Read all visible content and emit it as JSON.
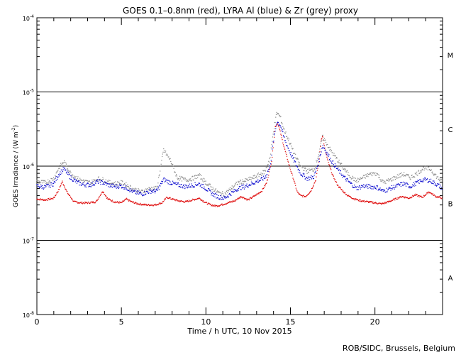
{
  "chart_data": {
    "type": "scatter",
    "title": "GOES 0.1–0.8nm (red), LYRA Al (blue) & Zr (grey) proxy",
    "xlabel": "Time / h UTC, 10 Nov 2015",
    "ylabel_main": "GOES Irradiance / (W m",
    "ylabel_sup": "-2",
    "ylabel_end": ")",
    "credit": "ROB/SIDC, Brussels, Belgium",
    "x_range": [
      0,
      24
    ],
    "x_ticks": [
      {
        "value": 0,
        "label": "0"
      },
      {
        "value": 5,
        "label": "5"
      },
      {
        "value": 10,
        "label": "10"
      },
      {
        "value": 15,
        "label": "15"
      },
      {
        "value": 20,
        "label": "20"
      }
    ],
    "y_scale": "log",
    "y_range": [
      1e-08,
      0.0001
    ],
    "y_ticks": [
      {
        "value": 1e-08,
        "base": "10",
        "exp": "-8"
      },
      {
        "value": 1e-07,
        "base": "10",
        "exp": "-7"
      },
      {
        "value": 1e-06,
        "base": "10",
        "exp": "-6"
      },
      {
        "value": 1e-05,
        "base": "10",
        "exp": "-5"
      },
      {
        "value": 0.0001,
        "base": "10",
        "exp": "-4"
      }
    ],
    "class_lines": [
      1e-07,
      1e-06,
      1e-05
    ],
    "flare_classes": [
      {
        "label": "A",
        "value": 3.16e-08
      },
      {
        "label": "B",
        "value": 3.16e-07
      },
      {
        "label": "C",
        "value": 3.16e-06
      },
      {
        "label": "M",
        "value": 3.16e-05
      }
    ],
    "colors": {
      "goes": "#dd0000",
      "al": "#0000cc",
      "zr": "#888888"
    },
    "series": [
      {
        "key": "goes",
        "x": [
          0,
          0.5,
          1,
          1.3,
          1.5,
          1.8,
          2.2,
          2.6,
          3,
          3.5,
          3.9,
          4.2,
          4.6,
          5,
          5.3,
          5.6,
          6,
          6.5,
          7,
          7.4,
          7.7,
          8,
          8.4,
          8.8,
          9.2,
          9.6,
          10,
          10.3,
          10.6,
          10.9,
          11.3,
          11.7,
          12.1,
          12.5,
          12.9,
          13.3,
          13.6,
          13.9,
          14.1,
          14.25,
          14.4,
          14.6,
          14.8,
          15.0,
          15.2,
          15.4,
          15.6,
          15.9,
          16.2,
          16.5,
          16.7,
          16.8,
          16.9,
          17.0,
          17.2,
          17.5,
          17.8,
          18.1,
          18.4,
          18.8,
          19.2,
          19.6,
          20,
          20.4,
          20.8,
          21.2,
          21.6,
          22,
          22.4,
          22.8,
          23.2,
          23.6,
          24
        ],
        "y": [
          3.6e-07,
          3.5e-07,
          3.7e-07,
          4.8e-07,
          6.2e-07,
          4.4e-07,
          3.3e-07,
          3.2e-07,
          3.2e-07,
          3.3e-07,
          4.6e-07,
          3.6e-07,
          3.3e-07,
          3.2e-07,
          3.6e-07,
          3.3e-07,
          3.1e-07,
          3e-07,
          3e-07,
          3.2e-07,
          3.8e-07,
          3.6e-07,
          3.4e-07,
          3.3e-07,
          3.5e-07,
          3.7e-07,
          3.2e-07,
          3e-07,
          2.9e-07,
          3e-07,
          3.2e-07,
          3.4e-07,
          3.9e-07,
          3.5e-07,
          4e-07,
          4.6e-07,
          6e-07,
          1.2e-06,
          3.4e-06,
          3.8e-06,
          2.9e-06,
          1.9e-06,
          1.3e-06,
          9e-07,
          6.5e-07,
          4.5e-07,
          4e-07,
          3.9e-07,
          4.6e-07,
          6.5e-07,
          1.2e-06,
          2.2e-06,
          2.6e-06,
          1.9e-06,
          1.2e-06,
          7.5e-07,
          5.5e-07,
          4.6e-07,
          4e-07,
          3.6e-07,
          3.4e-07,
          3.3e-07,
          3.2e-07,
          3.1e-07,
          3.3e-07,
          3.6e-07,
          3.9e-07,
          3.7e-07,
          4.1e-07,
          3.8e-07,
          4.5e-07,
          3.9e-07,
          3.7e-07
        ]
      },
      {
        "key": "al",
        "x": [
          0,
          0.5,
          1,
          1.3,
          1.6,
          2.0,
          2.4,
          2.8,
          3.2,
          3.6,
          3.9,
          4.3,
          4.7,
          5.0,
          5.3,
          5.7,
          6.2,
          6.7,
          7.1,
          7.5,
          7.9,
          8.3,
          8.8,
          9.2,
          9.6,
          10.0,
          10.4,
          10.8,
          11.1,
          11.5,
          11.9,
          12.3,
          12.7,
          13.1,
          13.5,
          13.8,
          14.0,
          14.2,
          14.4,
          14.6,
          14.8,
          15.0,
          15.2,
          15.6,
          16.0,
          16.4,
          16.7,
          16.9,
          17.1,
          17.4,
          17.8,
          18.2,
          18.5,
          18.9,
          19.3,
          19.7,
          20.1,
          20.5,
          20.9,
          21.3,
          21.7,
          22.1,
          22.5,
          22.9,
          23.3,
          23.7,
          24
        ],
        "y": [
          5.4e-07,
          5.2e-07,
          5.8e-07,
          7.8e-07,
          9.2e-07,
          7e-07,
          6e-07,
          5.6e-07,
          5.6e-07,
          6.2e-07,
          6e-07,
          5.5e-07,
          5.3e-07,
          5.4e-07,
          5.1e-07,
          4.5e-07,
          4.2e-07,
          4.6e-07,
          4.6e-07,
          6.6e-07,
          6e-07,
          5.6e-07,
          5.3e-07,
          5.5e-07,
          5.8e-07,
          5e-07,
          4.2e-07,
          3.8e-07,
          3.7e-07,
          4.3e-07,
          5e-07,
          5.3e-07,
          5.8e-07,
          6.3e-07,
          7e-07,
          1e-06,
          2.2e-06,
          4e-06,
          3.6e-06,
          2.5e-06,
          1.9e-06,
          1.5e-06,
          1.2e-06,
          8e-07,
          6.8e-07,
          7.2e-07,
          1.2e-06,
          1.9e-06,
          1.6e-06,
          1.2e-06,
          9e-07,
          7e-07,
          6e-07,
          5e-07,
          5.4e-07,
          5.3e-07,
          5.2e-07,
          4.6e-07,
          5e-07,
          5.4e-07,
          5.8e-07,
          5.3e-07,
          6e-07,
          6.6e-07,
          6.3e-07,
          5.6e-07,
          5e-07
        ]
      },
      {
        "key": "zr",
        "x": [
          0,
          0.5,
          1,
          1.3,
          1.6,
          2.0,
          2.4,
          2.8,
          3.2,
          3.6,
          3.9,
          4.3,
          4.7,
          5.0,
          5.3,
          5.7,
          6.2,
          6.7,
          7.1,
          7.5,
          7.9,
          8.3,
          8.8,
          9.2,
          9.6,
          10.0,
          10.4,
          10.8,
          11.1,
          11.5,
          11.9,
          12.3,
          12.7,
          13.1,
          13.5,
          13.8,
          14.0,
          14.2,
          14.4,
          14.6,
          14.8,
          15.0,
          15.2,
          15.6,
          16.0,
          16.4,
          16.7,
          16.9,
          17.1,
          17.4,
          17.8,
          18.2,
          18.5,
          18.9,
          19.3,
          19.7,
          20.1,
          20.5,
          20.9,
          21.3,
          21.7,
          22.1,
          22.5,
          22.9,
          23.3,
          23.7,
          24
        ],
        "y": [
          6.2e-07,
          6e-07,
          6.8e-07,
          9.5e-07,
          1.15e-06,
          8e-07,
          6.8e-07,
          6.2e-07,
          6e-07,
          6.8e-07,
          6.6e-07,
          6e-07,
          5.8e-07,
          6e-07,
          5.6e-07,
          4.9e-07,
          4.5e-07,
          5e-07,
          5e-07,
          1.65e-06,
          1.2e-06,
          7e-07,
          6.5e-07,
          6.8e-07,
          7.5e-07,
          6e-07,
          5e-07,
          4.3e-07,
          4.2e-07,
          5e-07,
          6e-07,
          6.3e-07,
          6.8e-07,
          7.5e-07,
          8.5e-07,
          1.3e-06,
          3e-06,
          5.3e-06,
          4.6e-06,
          3.2e-06,
          2.5e-06,
          2e-06,
          1.5e-06,
          1e-06,
          8.5e-07,
          9e-07,
          1.5e-06,
          2.5e-06,
          2.1e-06,
          1.6e-06,
          1.2e-06,
          9e-07,
          7.5e-07,
          6.3e-07,
          7e-07,
          7.8e-07,
          8e-07,
          6e-07,
          6.5e-07,
          7.2e-07,
          7.8e-07,
          7e-07,
          8e-07,
          9.5e-07,
          9e-07,
          7e-07,
          6e-07
        ]
      }
    ]
  }
}
